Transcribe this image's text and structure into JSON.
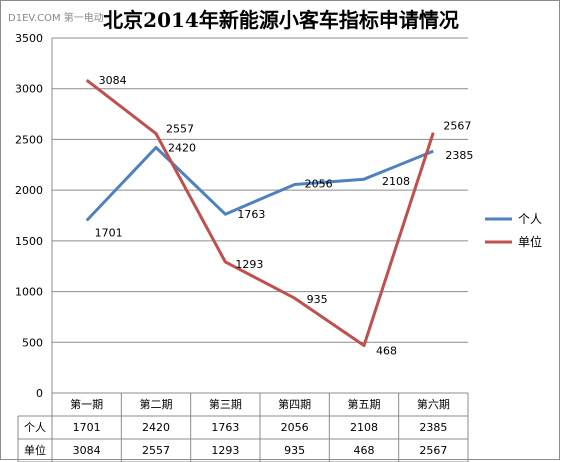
{
  "watermark": "D1EV.COM 第一电动",
  "chart_data": {
    "type": "line",
    "title": "北京2014年新能源小客车指标申请情况",
    "categories": [
      "第一期",
      "第二期",
      "第三期",
      "第四期",
      "第五期",
      "第六期"
    ],
    "ylim": [
      0,
      3500
    ],
    "yticks": [
      0,
      500,
      1000,
      1500,
      2000,
      2500,
      3000,
      3500
    ],
    "grid": true,
    "legend_position": "right",
    "data_table": true,
    "series": [
      {
        "name": "个人",
        "values": [
          1701,
          2420,
          1763,
          2056,
          2108,
          2385
        ],
        "color": "#4f81bd"
      },
      {
        "name": "单位",
        "values": [
          3084,
          2557,
          1293,
          935,
          468,
          2567
        ],
        "color": "#c0504d"
      }
    ]
  }
}
